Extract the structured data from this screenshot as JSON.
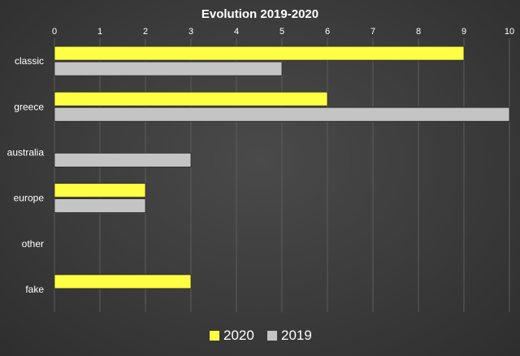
{
  "chart_data": {
    "type": "bar",
    "orientation": "horizontal",
    "title": "Evolution 2019-2020",
    "categories": [
      "classic",
      "greece",
      "australia",
      "europe",
      "other",
      "fake"
    ],
    "series": [
      {
        "name": "2020",
        "values": [
          9,
          6,
          0,
          2,
          0,
          3
        ],
        "color": "#ffff44"
      },
      {
        "name": "2019",
        "values": [
          5,
          10,
          3,
          2,
          0,
          0
        ],
        "color": "#c4c4c4"
      }
    ],
    "xlim": [
      0,
      10
    ],
    "xticks": [
      0,
      1,
      2,
      3,
      4,
      5,
      6,
      7,
      8,
      9,
      10
    ],
    "xaxis_position": "top",
    "grid": true,
    "legend_position": "bottom"
  }
}
